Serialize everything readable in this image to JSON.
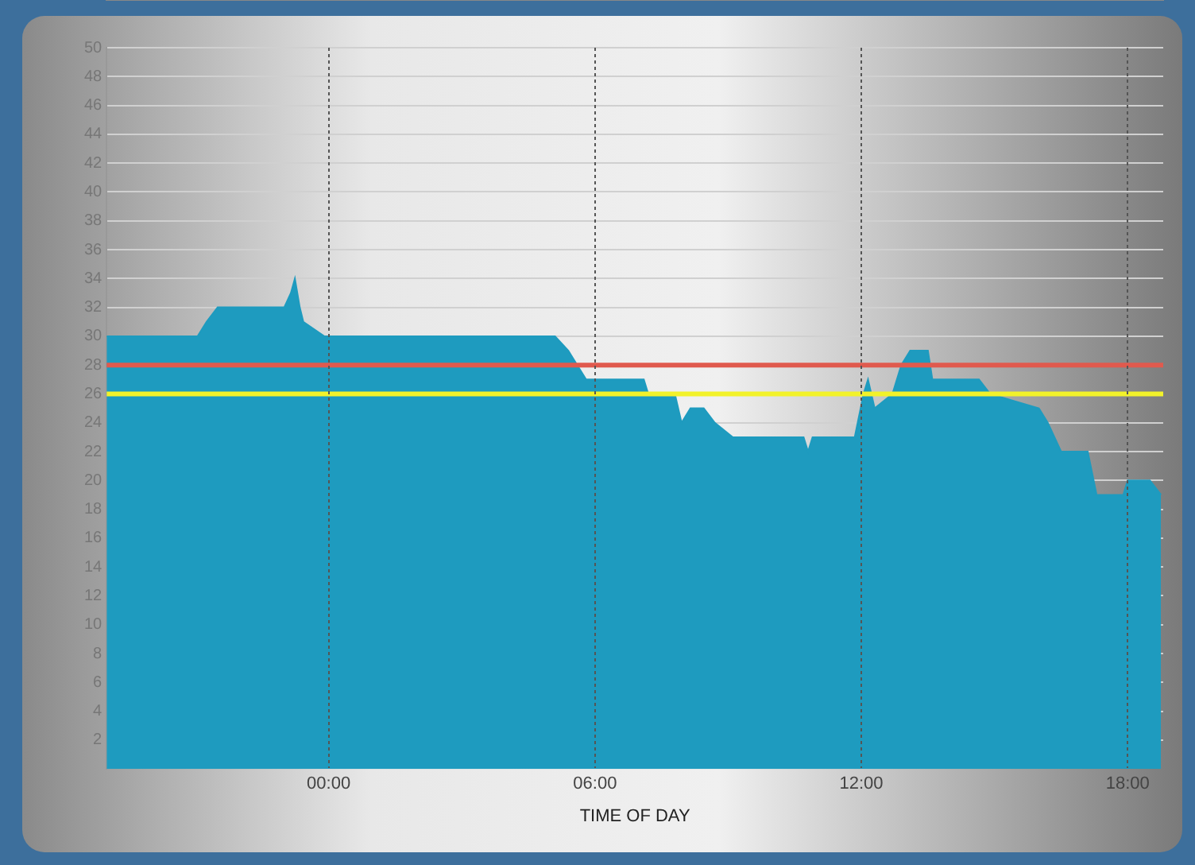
{
  "chart_data": {
    "type": "area",
    "xlabel": "TIME OF DAY",
    "x": [
      -5,
      -2.95,
      -2.75,
      -2.5,
      -1.0,
      -0.85,
      -0.76,
      -0.65,
      -0.57,
      -0.1,
      5.1,
      5.4,
      5.6,
      5.8,
      7.1,
      7.2,
      7.8,
      7.95,
      8.15,
      8.45,
      8.7,
      9.1,
      10.7,
      10.8,
      10.9,
      11.85,
      12.05,
      12.15,
      12.3,
      12.7,
      12.9,
      13.1,
      13.5,
      13.6,
      14.65,
      14.9,
      16.0,
      16.2,
      16.5,
      17.1,
      17.3,
      17.9,
      18.0,
      18.5,
      18.75
    ],
    "series": [
      {
        "color": "#1e9bbf",
        "values": [
          30,
          30,
          31,
          32,
          32,
          33,
          34,
          32,
          31,
          30,
          30,
          29,
          28,
          27,
          27,
          26,
          26,
          24,
          25,
          25,
          24,
          23,
          23,
          22,
          23,
          23,
          26,
          27,
          25,
          26,
          28,
          29,
          29,
          27,
          27,
          26,
          25,
          24,
          22,
          22,
          19,
          19,
          20,
          20,
          19
        ]
      }
    ],
    "xlim": [
      -5,
      18.8
    ],
    "xticks": [
      {
        "value": 0,
        "label": "00:00"
      },
      {
        "value": 6,
        "label": "06:00"
      },
      {
        "value": 12,
        "label": "12:00"
      },
      {
        "value": 18,
        "label": "18:00"
      }
    ],
    "ylim": [
      0,
      50
    ],
    "yticks": [
      2,
      4,
      6,
      8,
      10,
      12,
      14,
      16,
      18,
      20,
      22,
      24,
      26,
      28,
      30,
      32,
      34,
      36,
      38,
      40,
      42,
      44,
      46,
      48,
      50
    ],
    "ref_lines": [
      {
        "axis": "y",
        "value": 28,
        "color": "#e05a4e"
      },
      {
        "axis": "y",
        "value": 26,
        "color": "#f2f22a"
      }
    ],
    "grid": true,
    "legend": false
  }
}
